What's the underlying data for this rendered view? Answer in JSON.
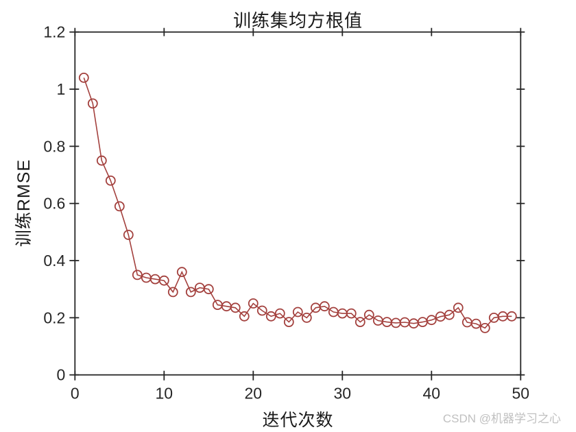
{
  "figure": {
    "watermark": "CSDN @机器学习之心"
  },
  "style": {
    "background": "#ffffff",
    "axis_color": "#262626",
    "text_color": "#1a1a1a",
    "watermark_color": "#c0c0c0"
  },
  "chart_data": {
    "type": "line",
    "title": "训练集均方根值",
    "xlabel": "迭代次数",
    "ylabel": "训练RMSE",
    "series_name": "训练RMSE",
    "marker": "hollow-circle",
    "line_color": "#A3403D",
    "grid": false,
    "legend_position": "none",
    "xlim": [
      0,
      50
    ],
    "ylim": [
      0,
      1.2
    ],
    "x_ticks": [
      0,
      10,
      20,
      30,
      40,
      50
    ],
    "y_ticks": [
      0,
      0.2,
      0.4,
      0.6,
      0.8,
      1,
      1.2
    ],
    "x": [
      1,
      2,
      3,
      4,
      5,
      6,
      7,
      8,
      9,
      10,
      11,
      12,
      13,
      14,
      15,
      16,
      17,
      18,
      19,
      20,
      21,
      22,
      23,
      24,
      25,
      26,
      27,
      28,
      29,
      30,
      31,
      32,
      33,
      34,
      35,
      36,
      37,
      38,
      39,
      40,
      41,
      42,
      43,
      44,
      45,
      46,
      47,
      48,
      49
    ],
    "y": [
      1.04,
      0.95,
      0.75,
      0.68,
      0.59,
      0.49,
      0.35,
      0.34,
      0.335,
      0.33,
      0.29,
      0.36,
      0.29,
      0.305,
      0.3,
      0.245,
      0.24,
      0.235,
      0.205,
      0.25,
      0.225,
      0.205,
      0.215,
      0.185,
      0.22,
      0.2,
      0.235,
      0.24,
      0.22,
      0.215,
      0.215,
      0.185,
      0.21,
      0.19,
      0.185,
      0.182,
      0.184,
      0.18,
      0.185,
      0.192,
      0.204,
      0.21,
      0.235,
      0.184,
      0.179,
      0.164,
      0.2,
      0.205,
      0.205
    ]
  }
}
